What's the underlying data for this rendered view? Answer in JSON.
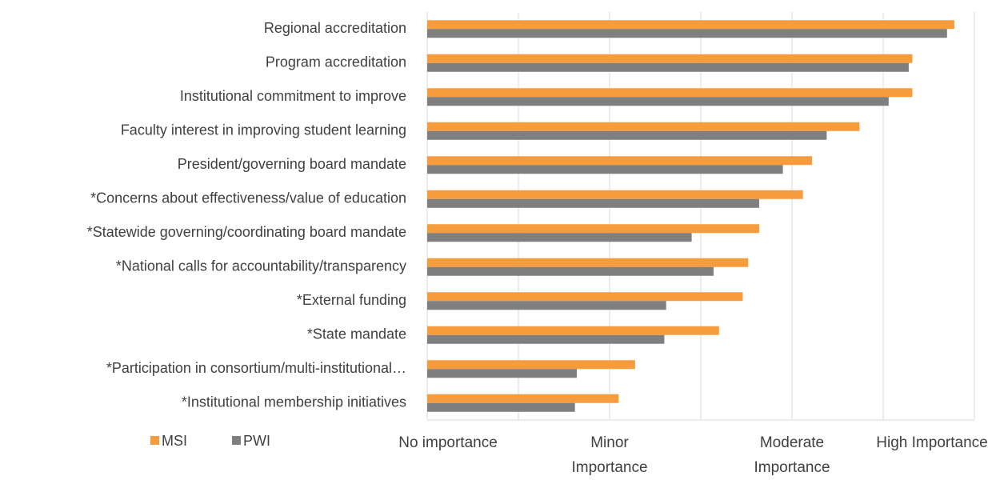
{
  "chart_data": {
    "type": "barh",
    "categories": [
      "Regional accreditation",
      "Program accreditation",
      "Institutional commitment to improve",
      "Faculty interest in improving student learning",
      "President/governing board mandate",
      "*Concerns about effectiveness/value of education",
      "*Statewide governing/coordinating board mandate",
      "*National calls for accountability/transparency",
      "*External funding ",
      "*State mandate",
      "*Participation in consortium/multi-institutional…",
      "*Institutional membership initiatives"
    ],
    "series": [
      {
        "name": "MSI",
        "color": "#f79c3d",
        "values": [
          3.89,
          3.66,
          3.66,
          3.37,
          3.11,
          3.06,
          2.82,
          2.76,
          2.73,
          2.6,
          2.14,
          2.05
        ]
      },
      {
        "name": "PWI",
        "color": "#7f7f7f",
        "values": [
          3.85,
          3.64,
          3.53,
          3.19,
          2.95,
          2.82,
          2.45,
          2.57,
          2.31,
          2.3,
          1.82,
          1.81
        ]
      }
    ],
    "xlim": [
      1,
      4
    ],
    "xticks": [
      {
        "value": 1,
        "label": "No importance"
      },
      {
        "value": 2,
        "label": "Minor Importance"
      },
      {
        "value": 3,
        "label": "Moderate Importance"
      },
      {
        "value": 4,
        "label": "High Importance"
      }
    ],
    "minor_xticks": [
      1.5,
      2.5,
      3.5
    ],
    "grid": true,
    "legend": "bottom-left"
  }
}
